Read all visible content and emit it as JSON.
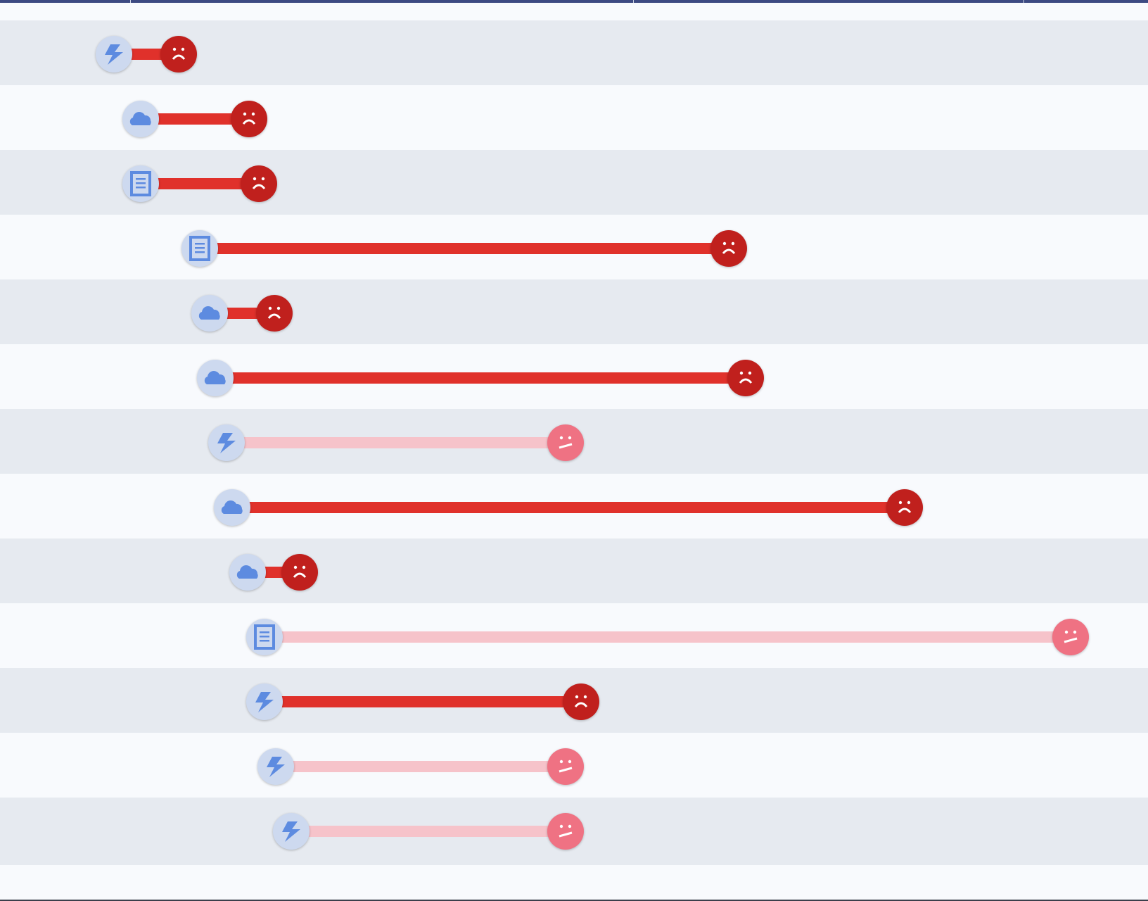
{
  "colors": {
    "header_line": "#3c4a82",
    "row_even": "#e6eaf0",
    "row_odd": "#f8fafd",
    "bar_frustrated": "#e0312b",
    "bar_neutral": "#f6c3ca",
    "face_frustrated": "#c0201d",
    "face_neutral": "#ef7283",
    "icon_bg": "#cdd9ef",
    "icon_fg": "#5d8be0"
  },
  "timeline": {
    "rows": [
      {
        "icon": "lightning-icon",
        "start_ms": 0,
        "end_ms": 230,
        "mood": "frustrated-face-icon"
      },
      {
        "icon": "cloud-icon",
        "start_ms": 95,
        "end_ms": 480,
        "mood": "frustrated-face-icon"
      },
      {
        "icon": "document-icon",
        "start_ms": 95,
        "end_ms": 515,
        "mood": "frustrated-face-icon"
      },
      {
        "icon": "document-icon",
        "start_ms": 305,
        "end_ms": 2185,
        "mood": "frustrated-face-icon"
      },
      {
        "icon": "cloud-icon",
        "start_ms": 340,
        "end_ms": 570,
        "mood": "frustrated-face-icon"
      },
      {
        "icon": "cloud-icon",
        "start_ms": 360,
        "end_ms": 2245,
        "mood": "frustrated-face-icon"
      },
      {
        "icon": "lightning-icon",
        "start_ms": 400,
        "end_ms": 1605,
        "mood": "neutral-face-icon"
      },
      {
        "icon": "cloud-icon",
        "start_ms": 420,
        "end_ms": 2810,
        "mood": "frustrated-face-icon"
      },
      {
        "icon": "cloud-icon",
        "start_ms": 475,
        "end_ms": 660,
        "mood": "frustrated-face-icon"
      },
      {
        "icon": "document-icon",
        "start_ms": 535,
        "end_ms": 3400,
        "mood": "neutral-face-icon"
      },
      {
        "icon": "lightning-icon",
        "start_ms": 535,
        "end_ms": 1660,
        "mood": "frustrated-face-icon"
      },
      {
        "icon": "lightning-icon",
        "start_ms": 575,
        "end_ms": 1605,
        "mood": "neutral-face-icon"
      },
      {
        "icon": "lightning-icon",
        "start_ms": 630,
        "end_ms": 1605,
        "mood": "neutral-face-icon"
      }
    ]
  }
}
